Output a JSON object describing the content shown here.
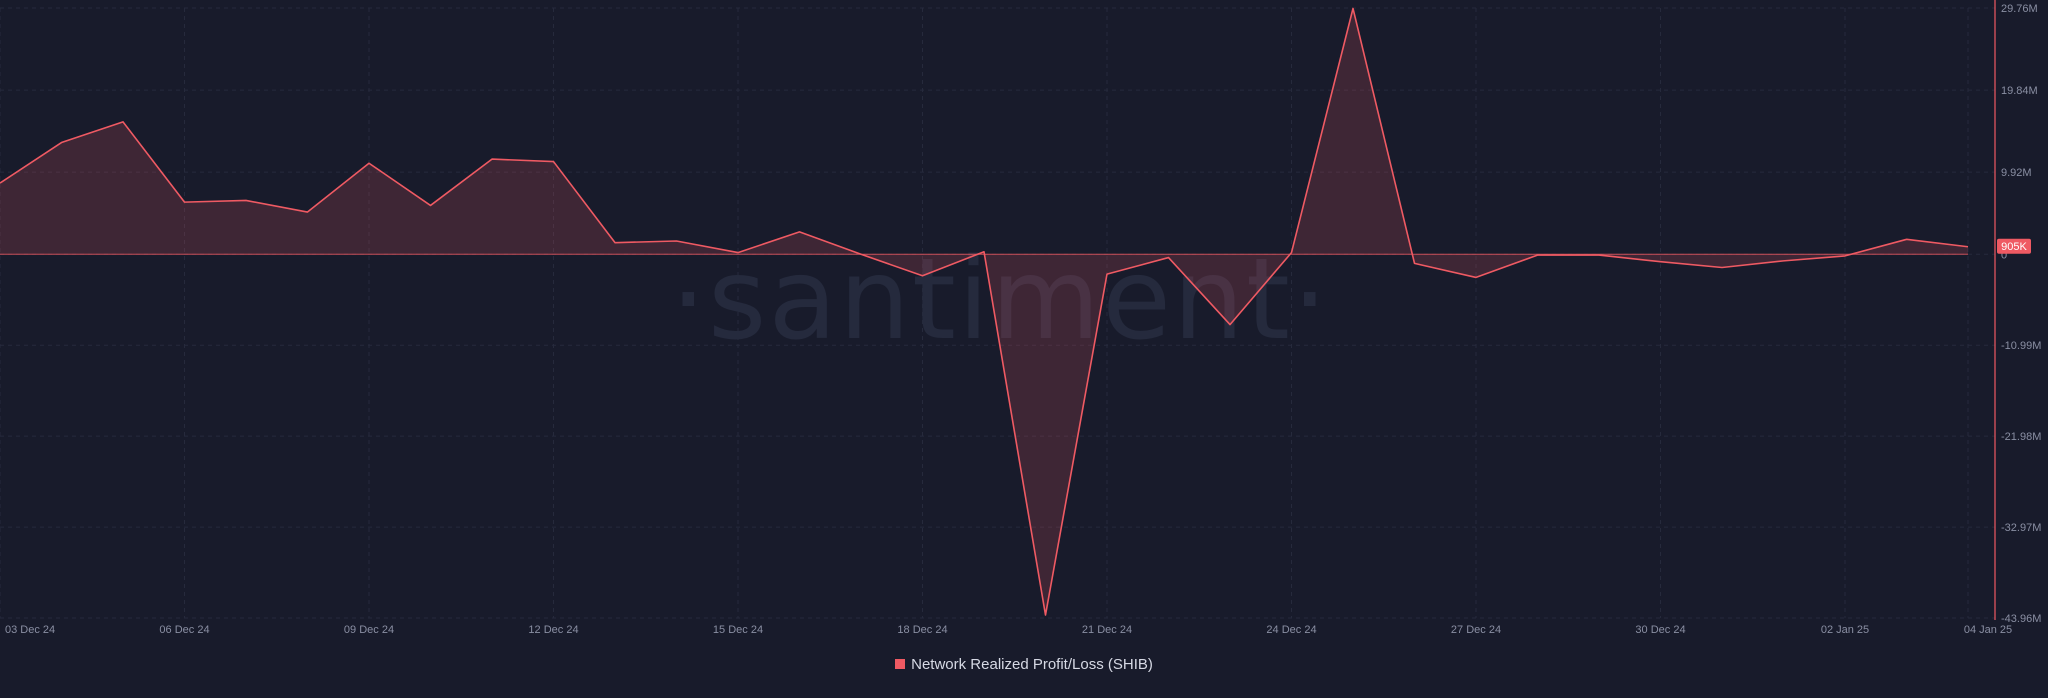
{
  "watermark": "·santiment·",
  "chart_data": {
    "type": "area",
    "series": [
      {
        "name": "Network Realized Profit/Loss (SHIB)",
        "color": "#ef5a63",
        "x": [
          "03 Dec 24",
          "04 Dec 24",
          "05 Dec 24",
          "06 Dec 24",
          "07 Dec 24",
          "08 Dec 24",
          "09 Dec 24",
          "10 Dec 24",
          "11 Dec 24",
          "12 Dec 24",
          "13 Dec 24",
          "14 Dec 24",
          "15 Dec 24",
          "16 Dec 24",
          "17 Dec 24",
          "18 Dec 24",
          "19 Dec 24",
          "20 Dec 24",
          "21 Dec 24",
          "22 Dec 24",
          "23 Dec 24",
          "24 Dec 24",
          "25 Dec 24",
          "26 Dec 24",
          "27 Dec 24",
          "28 Dec 24",
          "29 Dec 24",
          "30 Dec 24",
          "31 Dec 24",
          "01 Jan 25",
          "02 Jan 25",
          "03 Jan 25",
          "04 Jan 25"
        ],
        "values": [
          8.6,
          13.5,
          16.0,
          6.3,
          6.5,
          5.1,
          11.0,
          5.9,
          11.5,
          11.2,
          1.4,
          1.6,
          0.2,
          2.7,
          0.0,
          -2.6,
          0.3,
          -43.6,
          -2.4,
          -0.4,
          -8.5,
          0.2,
          29.7,
          -1.1,
          -2.8,
          -0.1,
          -0.1,
          -0.9,
          -1.6,
          -0.8,
          -0.2,
          1.8,
          0.905
        ]
      }
    ],
    "x_tick_labels": [
      "03 Dec 24",
      "06 Dec 24",
      "09 Dec 24",
      "12 Dec 24",
      "15 Dec 24",
      "18 Dec 24",
      "21 Dec 24",
      "24 Dec 24",
      "27 Dec 24",
      "30 Dec 24",
      "02 Jan 25",
      "04 Jan 25"
    ],
    "y_tick_values": [
      29.76,
      19.84,
      9.92,
      0,
      -10.99,
      -21.98,
      -32.97,
      -43.96
    ],
    "y_tick_labels": [
      "29.76M",
      "19.84M",
      "9.92M",
      "0",
      "-10.99M",
      "-21.98M",
      "-32.97M",
      "-43.96M"
    ],
    "ylim": [
      -43.96,
      29.76
    ],
    "y_unit": "M",
    "last_value_label": "905K",
    "legend_position": "bottom-center",
    "grid": true
  },
  "colors": {
    "background": "#181b2b",
    "line": "#ef5a63",
    "fill": "rgba(239,90,99,0.18)",
    "grid": "#262a3c",
    "axis": "#ef5a63",
    "tick_text": "#8a8fa3",
    "zero_line": "#ef5a63"
  }
}
